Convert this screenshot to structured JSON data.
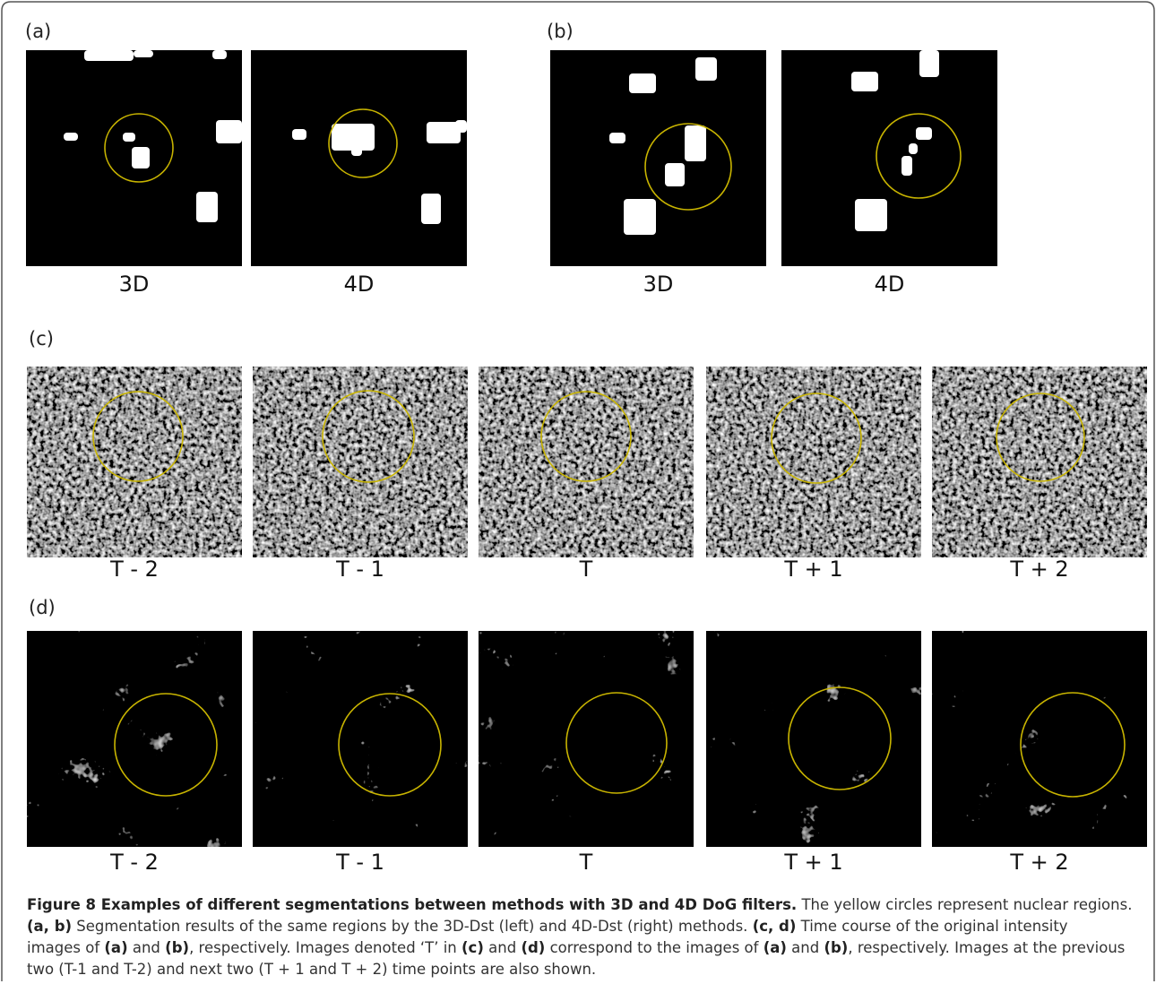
{
  "panels": [
    {
      "label": "(a)",
      "images": [
        "3D",
        "4D"
      ]
    },
    {
      "label": "(b)",
      "images": [
        "3D",
        "4D"
      ]
    },
    {
      "label": "(c)",
      "images": [
        "T - 2",
        "T - 1",
        "T",
        "T + 1",
        "T + 2"
      ]
    },
    {
      "label": "(d)",
      "images": [
        "T - 2",
        "T - 1",
        "T",
        "T + 1",
        "T + 2"
      ]
    }
  ],
  "caption": {
    "lines": [
      [
        {
          "text": "Figure 8 Examples of different segmentations between methods with 3D and 4D DoG filters.",
          "bold": true
        },
        {
          "text": " The yellow circles represent nuclear regions."
        }
      ],
      [
        {
          "text": "(a, b)",
          "bold": true
        },
        {
          "text": " Segmentation results of the same regions by the 3D-Dst (left) and 4D-Dst (right) methods. "
        },
        {
          "text": "(c, d)",
          "bold": true
        },
        {
          "text": " Time course of the original intensity"
        }
      ],
      [
        {
          "text": "images of "
        },
        {
          "text": "(a)",
          "bold": true
        },
        {
          "text": " and "
        },
        {
          "text": "(b)",
          "bold": true
        },
        {
          "text": ", respectively. Images denoted ‘T’ in "
        },
        {
          "text": "(c)",
          "bold": true
        },
        {
          "text": " and "
        },
        {
          "text": "(d)",
          "bold": true
        },
        {
          "text": " correspond to the images of "
        },
        {
          "text": "(a)",
          "bold": true
        },
        {
          "text": " and "
        },
        {
          "text": "(b)",
          "bold": true
        },
        {
          "text": ", respectively. Images at the previous"
        }
      ],
      [
        {
          "text": "two (T-1 and T-2) and next two (T + 1 and T + 2) time points are also shown."
        }
      ]
    ]
  }
}
